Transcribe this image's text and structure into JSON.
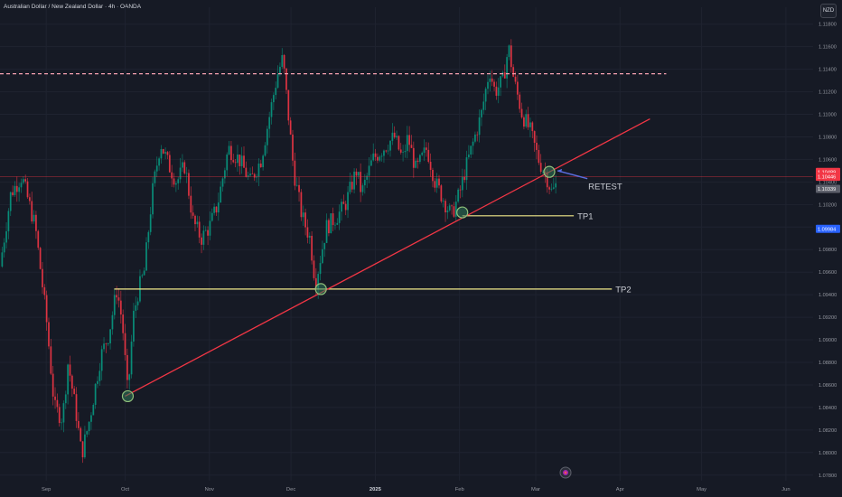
{
  "header": {
    "title": "Australian Dollar / New Zealand Dollar · 4h · OANDA",
    "currency": "NZD"
  },
  "chart_data": {
    "type": "candlestick",
    "y_ticks": [
      "1.11800",
      "1.11600",
      "1.11400",
      "1.11200",
      "1.11000",
      "1.10800",
      "1.10600",
      "1.10400",
      "1.10200",
      "1.10000",
      "1.09800",
      "1.09600",
      "1.09400",
      "1.09200",
      "1.09000",
      "1.08800",
      "1.08600",
      "1.08400",
      "1.08200",
      "1.08000",
      "1.07800"
    ],
    "ylim": [
      1.0775,
      1.1195
    ],
    "x_ticks": [
      {
        "label": "Sep",
        "t": 12
      },
      {
        "label": "Oct",
        "t": 41
      },
      {
        "label": "Nov",
        "t": 72
      },
      {
        "label": "Dec",
        "t": 102
      },
      {
        "label": "2025",
        "t": 133,
        "bold": true
      },
      {
        "label": "Feb",
        "t": 164
      },
      {
        "label": "Mar",
        "t": 192
      },
      {
        "label": "Apr",
        "t": 223
      },
      {
        "label": "May",
        "t": 253
      },
      {
        "label": "Jun",
        "t": 284
      }
    ],
    "xlim": [
      -5,
      294
    ],
    "price_path": [
      [
        -5,
        1.0965
      ],
      [
        -1,
        1.103
      ],
      [
        3,
        1.1045
      ],
      [
        8,
        1.1
      ],
      [
        12,
        1.092
      ],
      [
        15,
        1.084
      ],
      [
        18,
        1.083
      ],
      [
        20,
        1.088
      ],
      [
        23,
        1.0835
      ],
      [
        25,
        1.0798
      ],
      [
        28,
        1.083
      ],
      [
        32,
        1.0885
      ],
      [
        35,
        1.0905
      ],
      [
        38,
        1.0945
      ],
      [
        40,
        1.0915
      ],
      [
        42,
        1.085
      ],
      [
        44,
        1.092
      ],
      [
        46,
        1.0945
      ],
      [
        48,
        1.096
      ],
      [
        51,
        1.103
      ],
      [
        54,
        1.1075
      ],
      [
        57,
        1.1055
      ],
      [
        60,
        1.104
      ],
      [
        63,
        1.1055
      ],
      [
        66,
        1.1005
      ],
      [
        69,
        1.099
      ],
      [
        72,
        1.1
      ],
      [
        75,
        1.102
      ],
      [
        79,
        1.107
      ],
      [
        83,
        1.106
      ],
      [
        87,
        1.104
      ],
      [
        91,
        1.106
      ],
      [
        95,
        1.111
      ],
      [
        97,
        1.1135
      ],
      [
        99,
        1.115
      ],
      [
        101,
        1.11
      ],
      [
        103,
        1.105
      ],
      [
        106,
        1.101
      ],
      [
        109,
        1.099
      ],
      [
        111,
        1.095
      ],
      [
        113,
        1.0975
      ],
      [
        115,
        1.1
      ],
      [
        119,
        1.101
      ],
      [
        122,
        1.102
      ],
      [
        126,
        1.105
      ],
      [
        128,
        1.103
      ],
      [
        132,
        1.106
      ],
      [
        136,
        1.107
      ],
      [
        140,
        1.108
      ],
      [
        143,
        1.106
      ],
      [
        145,
        1.108
      ],
      [
        148,
        1.105
      ],
      [
        152,
        1.107
      ],
      [
        155,
        1.104
      ],
      [
        158,
        1.1025
      ],
      [
        161,
        1.101
      ],
      [
        164,
        1.103
      ],
      [
        166,
        1.105
      ],
      [
        169,
        1.1075
      ],
      [
        172,
        1.11
      ],
      [
        175,
        1.114
      ],
      [
        177,
        1.112
      ],
      [
        180,
        1.113
      ],
      [
        182,
        1.116
      ],
      [
        184,
        1.113
      ],
      [
        187,
        1.11
      ],
      [
        190,
        1.1085
      ],
      [
        193,
        1.106
      ],
      [
        196,
        1.1045
      ],
      [
        198,
        1.103
      ],
      [
        200,
        1.104
      ]
    ],
    "resistance_level": 1.1136,
    "resistance_range": [
      -5,
      240
    ],
    "trendline": [
      [
        41,
        1.085
      ],
      [
        234,
        1.1096
      ]
    ],
    "tp1": {
      "label": "TP1",
      "price": 1.101,
      "t_start": 165,
      "t_end": 206
    },
    "tp2": {
      "label": "TP2",
      "price": 1.0945,
      "t_start": 37,
      "t_end": 220
    },
    "retest": {
      "label": "RETEST",
      "from": [
        200,
        1.105
      ],
      "to": [
        211,
        1.1043
      ]
    },
    "touch_points": [
      [
        42,
        1.085
      ],
      [
        113,
        1.0945
      ],
      [
        165,
        1.1013
      ],
      [
        197,
        1.1049
      ]
    ],
    "price_tags": [
      {
        "value": "1.10489",
        "price": 1.10489,
        "color": "#f23645"
      },
      {
        "value": "1.10446",
        "price": 1.10446,
        "color": "#f23645"
      },
      {
        "value": "1.10339",
        "price": 1.10339,
        "color": "#5d606b"
      },
      {
        "value": "1.09984",
        "price": 1.09984,
        "color": "#2962ff"
      }
    ],
    "current_price_line": 1.10446
  }
}
